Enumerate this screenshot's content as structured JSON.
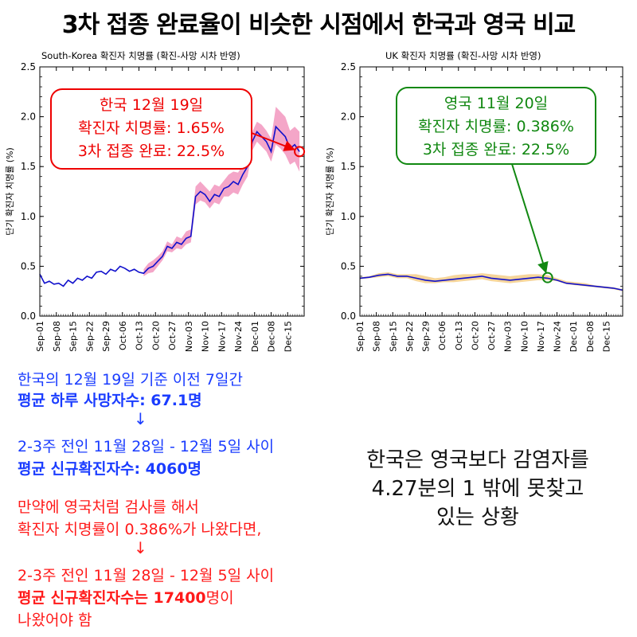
{
  "title": "3차 접종 완료율이 비슷한 시점에서 한국과 영국 비교",
  "chart_data": [
    {
      "type": "line",
      "title": "South-Korea 확진자 치명률 (확진-사망 시차 반영)",
      "ylabel": "단기 확진자 치명률 (%)",
      "ylim": [
        0,
        2.5
      ],
      "yticks": [
        "0.0",
        "0.5",
        "1.0",
        "1.5",
        "2.0",
        "2.5"
      ],
      "xlim": [
        0,
        112
      ],
      "xtick_labels": [
        "Sep-01",
        "Sep-08",
        "Sep-15",
        "Sep-22",
        "Sep-29",
        "Oct-06",
        "Oct-13",
        "Oct-20",
        "Oct-27",
        "Nov-03",
        "Nov-10",
        "Nov-17",
        "Nov-24",
        "Dec-01",
        "Dec-08",
        "Dec-15"
      ],
      "series": [
        {
          "name": "치명률",
          "color": "#1010cc",
          "x": [
            0,
            2,
            4,
            6,
            8,
            10,
            12,
            14,
            16,
            18,
            20,
            22,
            24,
            26,
            28,
            30,
            32,
            34,
            36,
            38,
            40,
            42,
            44,
            46,
            48,
            50,
            52,
            54,
            56,
            58,
            60,
            62,
            64,
            66,
            68,
            70,
            72,
            74,
            76,
            78,
            80,
            82,
            84,
            86,
            88,
            90,
            92,
            94,
            96,
            98,
            100,
            102,
            104,
            106,
            108,
            110
          ],
          "y": [
            0.42,
            0.33,
            0.35,
            0.32,
            0.33,
            0.3,
            0.36,
            0.33,
            0.38,
            0.36,
            0.4,
            0.38,
            0.44,
            0.45,
            0.42,
            0.47,
            0.45,
            0.5,
            0.48,
            0.45,
            0.47,
            0.44,
            0.43,
            0.48,
            0.5,
            0.55,
            0.6,
            0.7,
            0.68,
            0.74,
            0.72,
            0.78,
            0.8,
            1.2,
            1.25,
            1.22,
            1.15,
            1.22,
            1.2,
            1.28,
            1.3,
            1.35,
            1.32,
            1.42,
            1.5,
            1.75,
            1.85,
            1.8,
            1.75,
            1.65,
            1.9,
            1.85,
            1.8,
            1.68,
            1.72,
            1.65
          ],
          "band_lower": [
            null,
            null,
            null,
            null,
            null,
            null,
            null,
            null,
            null,
            null,
            null,
            null,
            null,
            null,
            null,
            null,
            null,
            null,
            null,
            null,
            null,
            null,
            0.4,
            0.43,
            0.44,
            0.5,
            0.56,
            0.65,
            0.64,
            0.68,
            0.67,
            0.72,
            0.74,
            1.12,
            1.16,
            1.14,
            1.08,
            1.14,
            1.12,
            1.2,
            1.2,
            1.24,
            1.22,
            1.32,
            1.4,
            1.66,
            1.75,
            1.7,
            1.65,
            1.55,
            1.72,
            1.68,
            1.62,
            1.52,
            1.55,
            1.45
          ],
          "band_upper": [
            null,
            null,
            null,
            null,
            null,
            null,
            null,
            null,
            null,
            null,
            null,
            null,
            null,
            null,
            null,
            null,
            null,
            null,
            null,
            null,
            null,
            null,
            0.47,
            0.53,
            0.56,
            0.6,
            0.65,
            0.75,
            0.72,
            0.8,
            0.78,
            0.85,
            0.87,
            1.3,
            1.35,
            1.3,
            1.25,
            1.32,
            1.3,
            1.36,
            1.42,
            1.45,
            1.44,
            1.52,
            1.6,
            1.85,
            1.95,
            1.92,
            1.86,
            1.78,
            2.1,
            2.05,
            2.0,
            1.86,
            1.9,
            1.85
          ]
        }
      ],
      "annotation": {
        "lines": [
          "한국 12월 19일",
          "확진자 치명률: 1.65%",
          "3차 접종 완료: 22.5%"
        ],
        "color": "#ee0000",
        "marker": {
          "x": 110,
          "y": 1.65
        }
      }
    },
    {
      "type": "line",
      "title": "UK 확진자 치명률 (확진-사망 시차 반영)",
      "ylabel": "단기 확진자 치명률 (%)",
      "ylim": [
        0,
        2.5
      ],
      "yticks": [
        "0.0",
        "0.5",
        "1.0",
        "1.5",
        "2.0",
        "2.5"
      ],
      "xlim": [
        0,
        112
      ],
      "xtick_labels": [
        "Sep-01",
        "Sep-08",
        "Sep-15",
        "Sep-22",
        "Sep-29",
        "Oct-06",
        "Oct-13",
        "Oct-20",
        "Oct-27",
        "Nov-03",
        "Nov-10",
        "Nov-17",
        "Nov-24",
        "Dec-01",
        "Dec-08",
        "Dec-15"
      ],
      "series": [
        {
          "name": "치명률",
          "color": "#1010cc",
          "x": [
            0,
            4,
            8,
            12,
            16,
            20,
            24,
            28,
            32,
            36,
            40,
            44,
            48,
            52,
            56,
            60,
            64,
            68,
            72,
            76,
            80,
            84,
            88,
            92,
            96,
            100,
            104,
            108,
            112
          ],
          "y": [
            0.38,
            0.39,
            0.41,
            0.42,
            0.4,
            0.4,
            0.38,
            0.36,
            0.35,
            0.36,
            0.37,
            0.38,
            0.39,
            0.4,
            0.38,
            0.37,
            0.36,
            0.37,
            0.38,
            0.39,
            0.38,
            0.36,
            0.33,
            0.32,
            0.31,
            0.3,
            0.29,
            0.28,
            0.26
          ],
          "band_lower": [
            0.37,
            0.38,
            0.39,
            0.4,
            0.38,
            0.38,
            0.35,
            0.33,
            0.33,
            0.34,
            0.34,
            0.35,
            0.36,
            0.37,
            0.35,
            0.34,
            0.33,
            0.34,
            0.35,
            0.36,
            0.36,
            0.35,
            0.32,
            0.31,
            0.3,
            0.29,
            0.28,
            0.27,
            0.25
          ],
          "band_upper": [
            0.39,
            0.4,
            0.43,
            0.44,
            0.42,
            0.42,
            0.42,
            0.4,
            0.38,
            0.39,
            0.41,
            0.42,
            0.42,
            0.43,
            0.42,
            0.41,
            0.4,
            0.41,
            0.42,
            0.42,
            0.41,
            0.38,
            0.35,
            0.34,
            0.33,
            0.31,
            0.3,
            0.29,
            0.27
          ]
        }
      ],
      "annotation": {
        "lines": [
          "영국 11월 20일",
          "확진자 치명률: 0.386%",
          "3차 접종 완료: 22.5%"
        ],
        "color": "#118811",
        "marker": {
          "x": 80,
          "y": 0.386
        }
      }
    }
  ],
  "text_blocks": {
    "kr_line1": "한국의 12월 19일 기준 이전 7일간",
    "kr_line2": "평균 하루 사망자수: 67.1명",
    "arrow1": "↓",
    "kr_line3": "2-3주 전인 11월 28일 - 12월 5일 사이",
    "kr_line4": "평균 신규확진자수: 4060명",
    "red_line1": "만약에 영국처럼 검사를 해서",
    "red_line2": "확진자 치명률이 0.386%가 나왔다면,",
    "arrow2": "↓",
    "red_line3": "2-3주 전인 11월 28일 - 12월 5일 사이",
    "red_line4_bold": "평균 신규확진자수는 17400",
    "red_line4_tail": "명이",
    "red_line5": "나왔어야 함",
    "note_line1": "한국은 영국보다 감염자를",
    "note_line2": "4.27분의 1 밖에 못찾고",
    "note_line3": "있는 상황"
  },
  "colors": {
    "line": "#1010cc",
    "band_kr": "#f4a6c8",
    "band_uk": "#f5d49a",
    "kr_annot": "#ee0000",
    "uk_annot": "#118811",
    "blue_text": "#1a3cff",
    "red_text": "#ff1a1a"
  }
}
